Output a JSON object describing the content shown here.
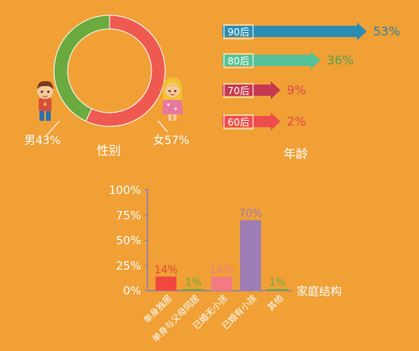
{
  "colors": {
    "background": "#F0A035",
    "male": "#6BAA3E",
    "female": "#EE5A50",
    "axis": "#8E7BB8",
    "text": "#FFFFFF"
  },
  "gender": {
    "title": "性别",
    "male_label": "男43%",
    "female_label": "女57%"
  },
  "age": {
    "title": "年龄"
  },
  "family": {
    "axis_title": "家庭结构"
  },
  "chart_data": [
    {
      "type": "pie",
      "title": "性别",
      "donut": true,
      "slices": [
        {
          "label": "男",
          "value": 43,
          "color": "#6BAA3E",
          "display": "男43%"
        },
        {
          "label": "女",
          "value": 57,
          "color": "#EE5A50",
          "display": "女57%"
        }
      ]
    },
    {
      "type": "bar",
      "orientation": "horizontal",
      "title": "年龄",
      "categories": [
        "90后",
        "80后",
        "70后",
        "60后"
      ],
      "values": [
        53,
        36,
        9,
        2
      ],
      "value_labels": [
        "53%",
        "36%",
        "9%",
        "2%"
      ],
      "colors": [
        "#2B8DB3",
        "#55C196",
        "#C5384F",
        "#EE4D4D"
      ],
      "label_colors": [
        "#2B7FA8",
        "#4C9F56",
        "#D9484D",
        "#E84545"
      ]
    },
    {
      "type": "bar",
      "title": "",
      "xlabel": "家庭结构",
      "categories": [
        "单身独居",
        "单身与父母同居",
        "已婚无小孩",
        "已婚有小孩",
        "其他"
      ],
      "values": [
        14,
        1,
        14,
        70,
        1
      ],
      "value_labels": [
        "14%",
        "1%",
        "14%",
        "70%",
        "1%"
      ],
      "colors": [
        "#F0483F",
        "#6BAA3E",
        "#F27A82",
        "#9E7CB5",
        "#6BAA3E"
      ],
      "label_colors": [
        "#E8453B",
        "#6BAA3E",
        "#F07E8C",
        "#9A79B8",
        "#6BAA3E"
      ],
      "yticks": [
        "0%",
        "25%",
        "50%",
        "75%",
        "100%"
      ],
      "ylim": [
        0,
        100
      ]
    }
  ]
}
